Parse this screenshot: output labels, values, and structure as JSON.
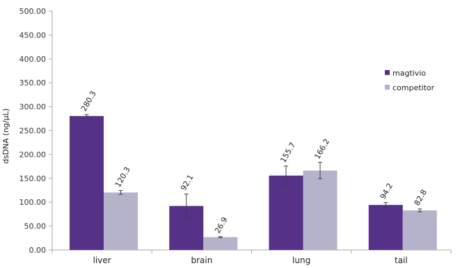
{
  "chart_data": {
    "type": "bar",
    "title": "",
    "xlabel": "",
    "ylabel": "dsDNA (ng/µL)",
    "ylim": [
      0,
      500
    ],
    "ytick_step": 50,
    "ytick_labels": [
      "0.00",
      "50.00",
      "100.00",
      "150.00",
      "200.00",
      "250.00",
      "300.00",
      "350.00",
      "400.00",
      "450.00",
      "500.00"
    ],
    "categories": [
      "liver",
      "brain",
      "lung",
      "tail"
    ],
    "series": [
      {
        "name": "magtivio",
        "color": "#553187",
        "values": [
          280.3,
          92.1,
          155.7,
          94.2
        ],
        "labels": [
          "280.3",
          "92.1",
          "155.7",
          "94.2"
        ],
        "errors": [
          3,
          25,
          20,
          5
        ]
      },
      {
        "name": "competitor",
        "color": "#b5b2cc",
        "values": [
          120.3,
          26.9,
          166.2,
          82.8
        ],
        "labels": [
          "120.3",
          "26.9",
          "166.2",
          "82.8"
        ],
        "errors": [
          4,
          1,
          17,
          3
        ]
      }
    ],
    "grid": false,
    "legend_position": "right"
  }
}
